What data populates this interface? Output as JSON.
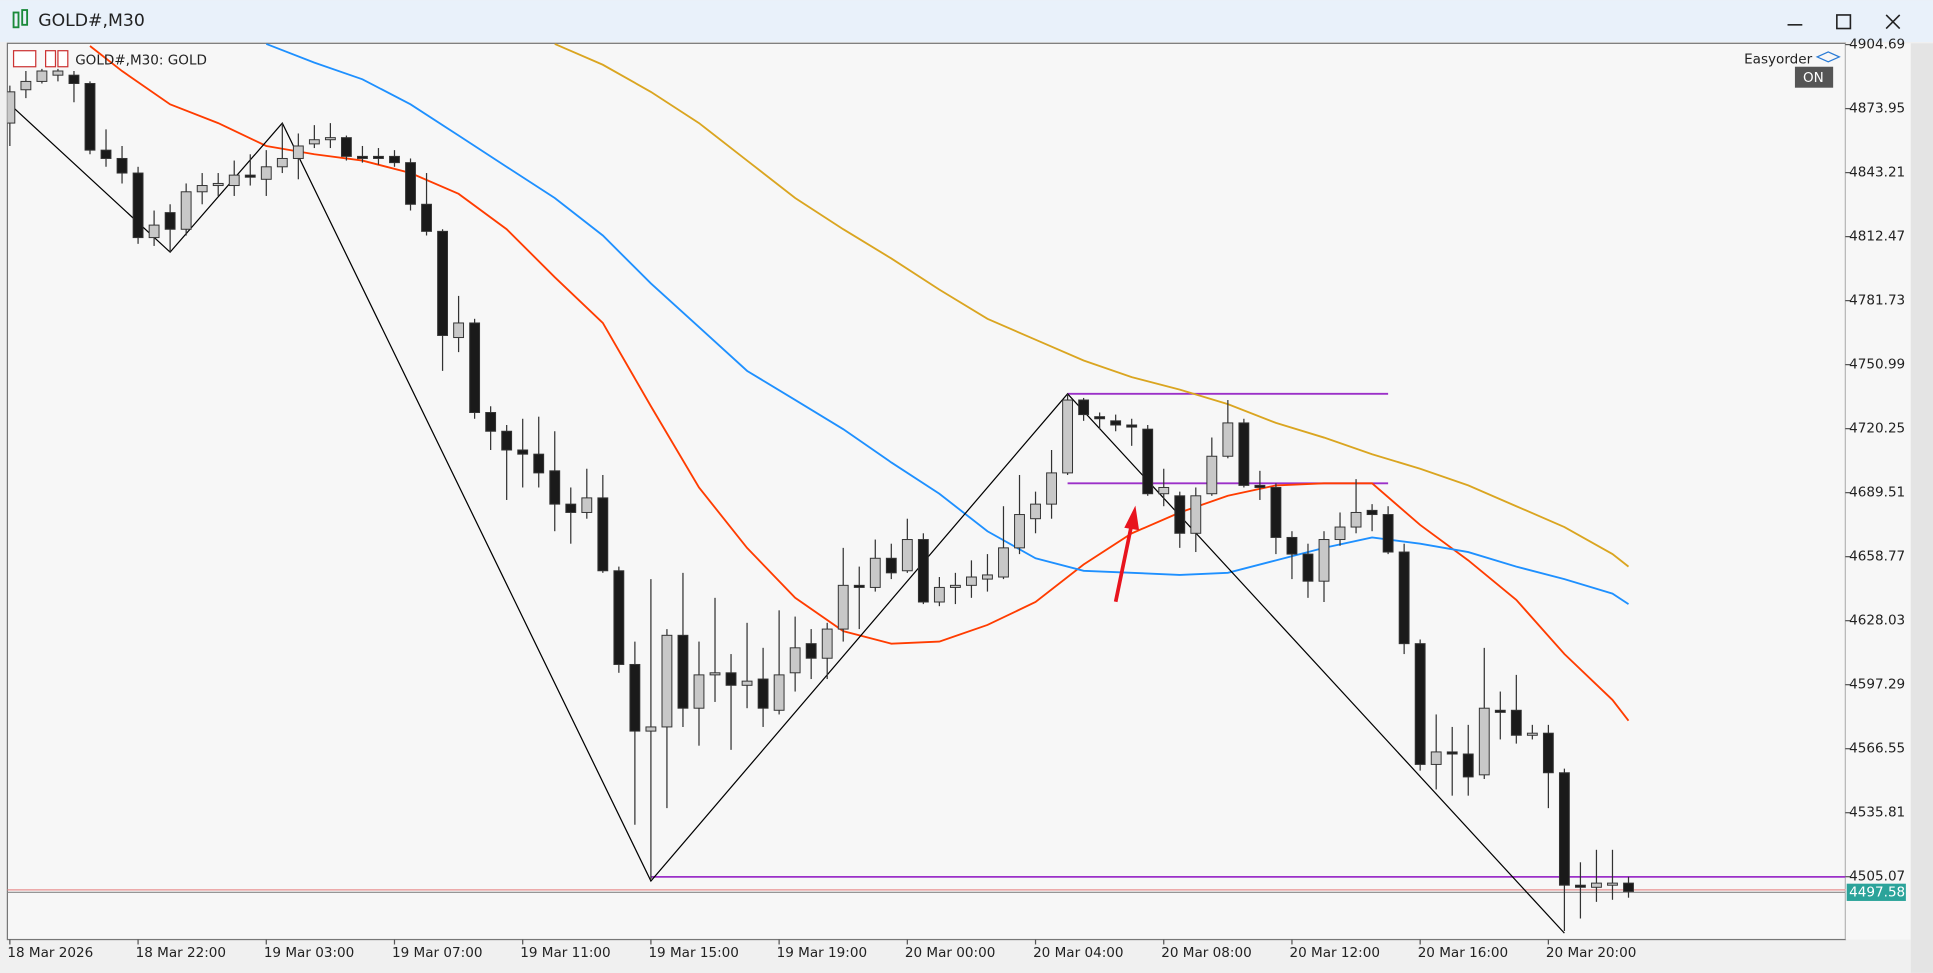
{
  "window": {
    "title": "GOLD#,M30"
  },
  "panel": {
    "label": "Easyorder",
    "button": "ON"
  },
  "chart_data": {
    "type": "candlestick",
    "title": "GOLD#,M30:  GOLD",
    "categories": [
      "18 Mar 2026",
      null,
      null,
      null,
      null,
      null,
      null,
      null,
      "18 Mar 22:00",
      null,
      null,
      null,
      null,
      null,
      null,
      null,
      "19 Mar 03:00",
      null,
      null,
      null,
      null,
      null,
      null,
      null,
      "19 Mar 07:00",
      null,
      null,
      null,
      null,
      null,
      null,
      null,
      "19 Mar 11:00",
      null,
      null,
      null,
      null,
      null,
      null,
      null,
      "19 Mar 15:00",
      null,
      null,
      null,
      null,
      null,
      null,
      null,
      "19 Mar 19:00",
      null,
      null,
      null,
      null,
      null,
      null,
      null,
      "20 Mar 00:00",
      null,
      null,
      null,
      null,
      null,
      null,
      null,
      "20 Mar 04:00",
      null,
      null,
      null,
      null,
      null,
      null,
      null,
      "20 Mar 08:00",
      null,
      null,
      null,
      null,
      null,
      null,
      null,
      "20 Mar 12:00",
      null,
      null,
      null,
      null,
      null,
      null,
      null,
      "20 Mar 16:00",
      null,
      null,
      null,
      null,
      null,
      null,
      null,
      "20 Mar 20:00",
      null,
      null,
      null,
      null,
      null
    ],
    "candles": [
      [
        4867,
        4885,
        4856,
        4882
      ],
      [
        4883,
        4892,
        4879,
        4887
      ],
      [
        4887,
        4893,
        4886,
        4892
      ],
      [
        4890,
        4893,
        4887,
        4892
      ],
      [
        4890,
        4892,
        4877,
        4886
      ],
      [
        4886,
        4887,
        4852,
        4854
      ],
      [
        4854,
        4864,
        4846,
        4850
      ],
      [
        4850,
        4856,
        4838,
        4843
      ],
      [
        4843,
        4846,
        4809,
        4812
      ],
      [
        4812,
        4825,
        4808,
        4818
      ],
      [
        4824,
        4828,
        4805,
        4816
      ],
      [
        4816,
        4838,
        4813,
        4834
      ],
      [
        4834,
        4843,
        4828,
        4837
      ],
      [
        4837,
        4843,
        4832,
        4838
      ],
      [
        4837,
        4849,
        4832,
        4842
      ],
      [
        4842,
        4852,
        4837,
        4841
      ],
      [
        4840,
        4854,
        4832,
        4846
      ],
      [
        4846,
        4867,
        4843,
        4850
      ],
      [
        4850,
        4862,
        4840,
        4856
      ],
      [
        4857,
        4866,
        4855,
        4859
      ],
      [
        4859,
        4867,
        4855,
        4860
      ],
      [
        4860,
        4861,
        4849,
        4851
      ],
      [
        4851,
        4856,
        4848,
        4850
      ],
      [
        4851,
        4855,
        4847,
        4850
      ],
      [
        4851,
        4854,
        4846,
        4848
      ],
      [
        4848,
        4850,
        4825,
        4828
      ],
      [
        4828,
        4843,
        4813,
        4815
      ],
      [
        4815,
        4816,
        4748,
        4765
      ],
      [
        4764,
        4784,
        4757,
        4771
      ],
      [
        4771,
        4773,
        4725,
        4728
      ],
      [
        4728,
        4731,
        4710,
        4719
      ],
      [
        4719,
        4722,
        4686,
        4710
      ],
      [
        4710,
        4725,
        4692,
        4708
      ],
      [
        4708,
        4726,
        4692,
        4699
      ],
      [
        4700,
        4719,
        4671,
        4684
      ],
      [
        4684,
        4692,
        4665,
        4680
      ],
      [
        4680,
        4701,
        4677,
        4687
      ],
      [
        4687,
        4698,
        4651,
        4652
      ],
      [
        4652,
        4654,
        4603,
        4607
      ],
      [
        4607,
        4618,
        4530,
        4575
      ],
      [
        4575,
        4648,
        4504,
        4577
      ],
      [
        4577,
        4624,
        4538,
        4621
      ],
      [
        4621,
        4651,
        4577,
        4586
      ],
      [
        4586,
        4618,
        4568,
        4602
      ],
      [
        4602,
        4639,
        4589,
        4603
      ],
      [
        4603,
        4612,
        4566,
        4597
      ],
      [
        4597,
        4627,
        4586,
        4599
      ],
      [
        4600,
        4615,
        4577,
        4586
      ],
      [
        4585,
        4633,
        4583,
        4602
      ],
      [
        4603,
        4630,
        4594,
        4615
      ],
      [
        4617,
        4624,
        4600,
        4610
      ],
      [
        4610,
        4627,
        4600,
        4624
      ],
      [
        4624,
        4663,
        4618,
        4645
      ],
      [
        4645,
        4654,
        4624,
        4644
      ],
      [
        4644,
        4667,
        4642,
        4658
      ],
      [
        4658,
        4665,
        4648,
        4651
      ],
      [
        4652,
        4677,
        4651,
        4667
      ],
      [
        4667,
        4670,
        4636,
        4637
      ],
      [
        4637,
        4649,
        4635,
        4644
      ],
      [
        4644,
        4651,
        4636,
        4645
      ],
      [
        4645,
        4657,
        4639,
        4649
      ],
      [
        4648,
        4660,
        4642,
        4650
      ],
      [
        4649,
        4683,
        4648,
        4663
      ],
      [
        4663,
        4698,
        4660,
        4679
      ],
      [
        4677,
        4690,
        4670,
        4684
      ],
      [
        4684,
        4710,
        4677,
        4699
      ],
      [
        4699,
        4737,
        4698,
        4734
      ],
      [
        4734,
        4735,
        4724,
        4727
      ],
      [
        4726,
        4728,
        4720,
        4725
      ],
      [
        4724,
        4727,
        4719,
        4722
      ],
      [
        4722,
        4725,
        4712,
        4721
      ],
      [
        4720,
        4722,
        4688,
        4689
      ],
      [
        4689,
        4701,
        4683,
        4692
      ],
      [
        4688,
        4690,
        4663,
        4670
      ],
      [
        4670,
        4692,
        4661,
        4688
      ],
      [
        4689,
        4716,
        4688,
        4707
      ],
      [
        4707,
        4734,
        4706,
        4723
      ],
      [
        4723,
        4725,
        4692,
        4693
      ],
      [
        4693,
        4700,
        4686,
        4692
      ],
      [
        4692,
        4694,
        4660,
        4668
      ],
      [
        4668,
        4671,
        4648,
        4660
      ],
      [
        4660,
        4665,
        4639,
        4647
      ],
      [
        4647,
        4671,
        4637,
        4667
      ],
      [
        4667,
        4680,
        4664,
        4673
      ],
      [
        4673,
        4696,
        4670,
        4680
      ],
      [
        4681,
        4684,
        4671,
        4679
      ],
      [
        4679,
        4683,
        4660,
        4661
      ],
      [
        4661,
        4665,
        4612,
        4617
      ],
      [
        4617,
        4619,
        4556,
        4559
      ],
      [
        4559,
        4583,
        4547,
        4565
      ],
      [
        4565,
        4577,
        4544,
        4564
      ],
      [
        4564,
        4578,
        4544,
        4553
      ],
      [
        4554,
        4615,
        4552,
        4586
      ],
      [
        4585,
        4594,
        4571,
        4584
      ],
      [
        4585,
        4602,
        4569,
        4573
      ],
      [
        4573,
        4578,
        4571,
        4574
      ],
      [
        4574,
        4578,
        4538,
        4555
      ],
      [
        4555,
        4557,
        4479,
        4501
      ],
      [
        4501,
        4512,
        4485,
        4500
      ],
      [
        4500,
        4518,
        4493,
        4502
      ],
      [
        4501,
        4518,
        4494,
        4502
      ],
      [
        4502,
        4505,
        4495,
        4498
      ]
    ],
    "bull_color": "#c8c8c8",
    "bear_color": "#1a1a1a",
    "lines": [
      {
        "color": "#ff3c00",
        "x": [
          5,
          7,
          10,
          13,
          16,
          19,
          22,
          25,
          28,
          31,
          34,
          37,
          40,
          43,
          46,
          49,
          52,
          55,
          58,
          61,
          64,
          67,
          70,
          73,
          76,
          79,
          82,
          85,
          88,
          91,
          94,
          97,
          100,
          101
        ],
        "values": [
          4904,
          4892,
          4876,
          4867,
          4856,
          4852,
          4849,
          4843,
          4833,
          4816,
          4793,
          4771,
          4731,
          4692,
          4663,
          4639,
          4623,
          4617,
          4618,
          4626,
          4637,
          4655,
          4670,
          4680,
          4688,
          4693,
          4694,
          4694,
          4674,
          4657,
          4638,
          4612,
          4590,
          4580
        ]
      },
      {
        "color": "#1e90ff",
        "x": [
          16,
          19,
          22,
          25,
          28,
          31,
          34,
          37,
          40,
          43,
          46,
          49,
          52,
          55,
          58,
          61,
          64,
          67,
          70,
          73,
          76,
          79,
          82,
          85,
          88,
          91,
          94,
          97,
          100,
          101
        ],
        "values": [
          4905,
          4896,
          4888,
          4876,
          4861,
          4846,
          4831,
          4813,
          4790,
          4769,
          4748,
          4734,
          4720,
          4704,
          4689,
          4671,
          4658,
          4652,
          4651,
          4650,
          4651,
          4657,
          4663,
          4668,
          4665,
          4661,
          4654,
          4648,
          4641,
          4636
        ]
      },
      {
        "color": "#daa520",
        "x": [
          34,
          37,
          40,
          43,
          46,
          49,
          52,
          55,
          58,
          61,
          64,
          67,
          70,
          73,
          76,
          79,
          82,
          85,
          88,
          91,
          94,
          97,
          100,
          101
        ],
        "values": [
          4905,
          4895,
          4882,
          4867,
          4849,
          4831,
          4816,
          4802,
          4787,
          4773,
          4763,
          4753,
          4745,
          4739,
          4732,
          4723,
          4716,
          4708,
          4701,
          4693,
          4683,
          4673,
          4660,
          4654
        ]
      },
      {
        "color": "#000000",
        "x": [
          0,
          10,
          17,
          40,
          66,
          97
        ],
        "values": [
          4876,
          4805,
          4867,
          4503,
          4737,
          4478
        ]
      }
    ],
    "levels": [
      {
        "color": "#9b30c8",
        "x": [
          66,
          86
        ],
        "value": 4737,
        "extend": false
      },
      {
        "color": "#9b30c8",
        "x": [
          66,
          86
        ],
        "value": 4694,
        "extend": false
      },
      {
        "color": "#9b30c8",
        "x": [
          40,
          101
        ],
        "value": 4505,
        "extend": true
      }
    ],
    "last_price": 4497.58,
    "ylim": [
      4474.9,
      4905.3
    ],
    "yticks": [
      4904.69,
      4873.95,
      4843.21,
      4812.47,
      4781.73,
      4750.99,
      4720.25,
      4689.51,
      4658.77,
      4628.03,
      4597.29,
      4566.55,
      4535.81,
      4505.07
    ],
    "grid": false
  }
}
